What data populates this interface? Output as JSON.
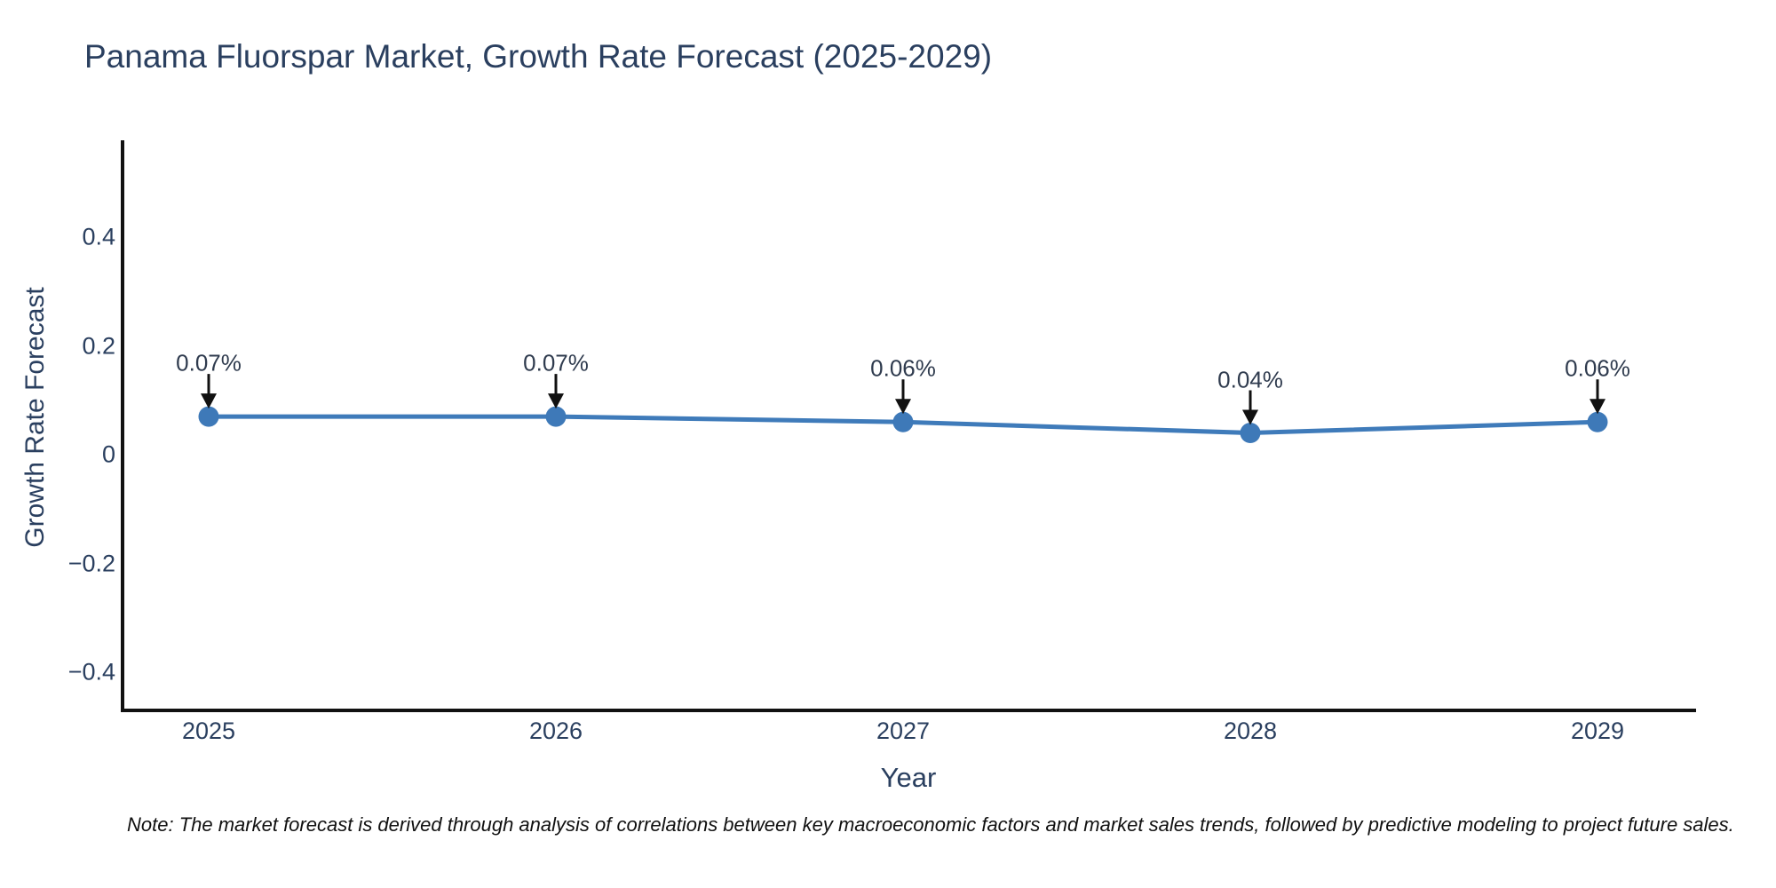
{
  "chart": {
    "background": "#ffffff",
    "colors": {
      "title_text": "#2a3f5f",
      "axis_text": "#2a3f5f",
      "annotation_text": "#2f3b4e",
      "line": "#3f7bba",
      "marker": "#3e79b8",
      "axis_line": "#111111",
      "arrow": "#111111",
      "note_text": "#111111"
    }
  },
  "chart_data": {
    "type": "line",
    "title": "Panama Fluorspar Market, Growth Rate Forecast (2025-2029)",
    "xlabel": "Year",
    "ylabel": "Growth Rate Forecast",
    "x": [
      2025,
      2026,
      2027,
      2028,
      2029
    ],
    "x_tick_labels": [
      "2025",
      "2026",
      "2027",
      "2028",
      "2029"
    ],
    "series": [
      {
        "name": "Growth Rate Forecast",
        "values": [
          0.07,
          0.07,
          0.06,
          0.04,
          0.06
        ]
      }
    ],
    "point_labels": [
      "0.07%",
      "0.07%",
      "0.06%",
      "0.04%",
      "0.06%"
    ],
    "y_ticks": [
      0.4,
      0.2,
      0,
      -0.2,
      -0.4
    ],
    "y_tick_labels": [
      "0.4",
      "0.2",
      "0",
      "−0.2",
      "−0.4"
    ],
    "ylim": [
      -0.47,
      0.56
    ],
    "grid": false,
    "legend": false,
    "markers": true,
    "annotation_arrows": true,
    "note": "Note: The market forecast is derived through analysis of correlations between key macroeconomic factors and market sales trends, followed by predictive modeling to project future sales."
  }
}
